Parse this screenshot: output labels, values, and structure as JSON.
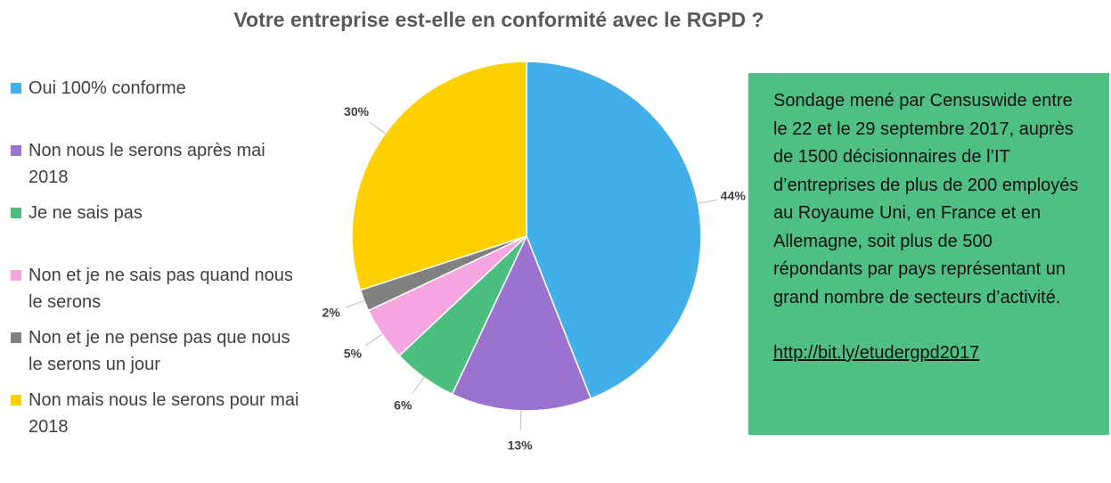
{
  "chart_data": {
    "type": "pie",
    "title": "Votre entreprise est-elle en conformité avec le RGPD ?",
    "categories": [
      "Oui 100% conforme",
      "Non nous le serons après mai 2018",
      "Je ne sais pas",
      "Non et je ne sais pas quand nous le serons",
      "Non et je ne pense pas que nous le serons un jour",
      "Non mais nous le serons pour mai 2018"
    ],
    "values": [
      44,
      13,
      6,
      5,
      2,
      30
    ],
    "value_labels": [
      "44%",
      "13%",
      "6%",
      "5%",
      "2%",
      "30%"
    ],
    "colors": [
      "#41b0e8",
      "#9b72d0",
      "#4cbf80",
      "#f5a6e0",
      "#808080",
      "#ffd000"
    ],
    "legend": "left"
  },
  "note": {
    "text": "Sondage mené par Censuswide entre le 22 et le 29 septembre 2017, auprès de 1500 décisionnaires de l’IT d’entreprises de plus de 200 employés au Royaume Uni, en France et en Allemagne, soit plus de 500 répondants par pays représentant un grand nombre de secteurs d’activité.",
    "link": "http://bit.ly/etudergpd2017"
  }
}
